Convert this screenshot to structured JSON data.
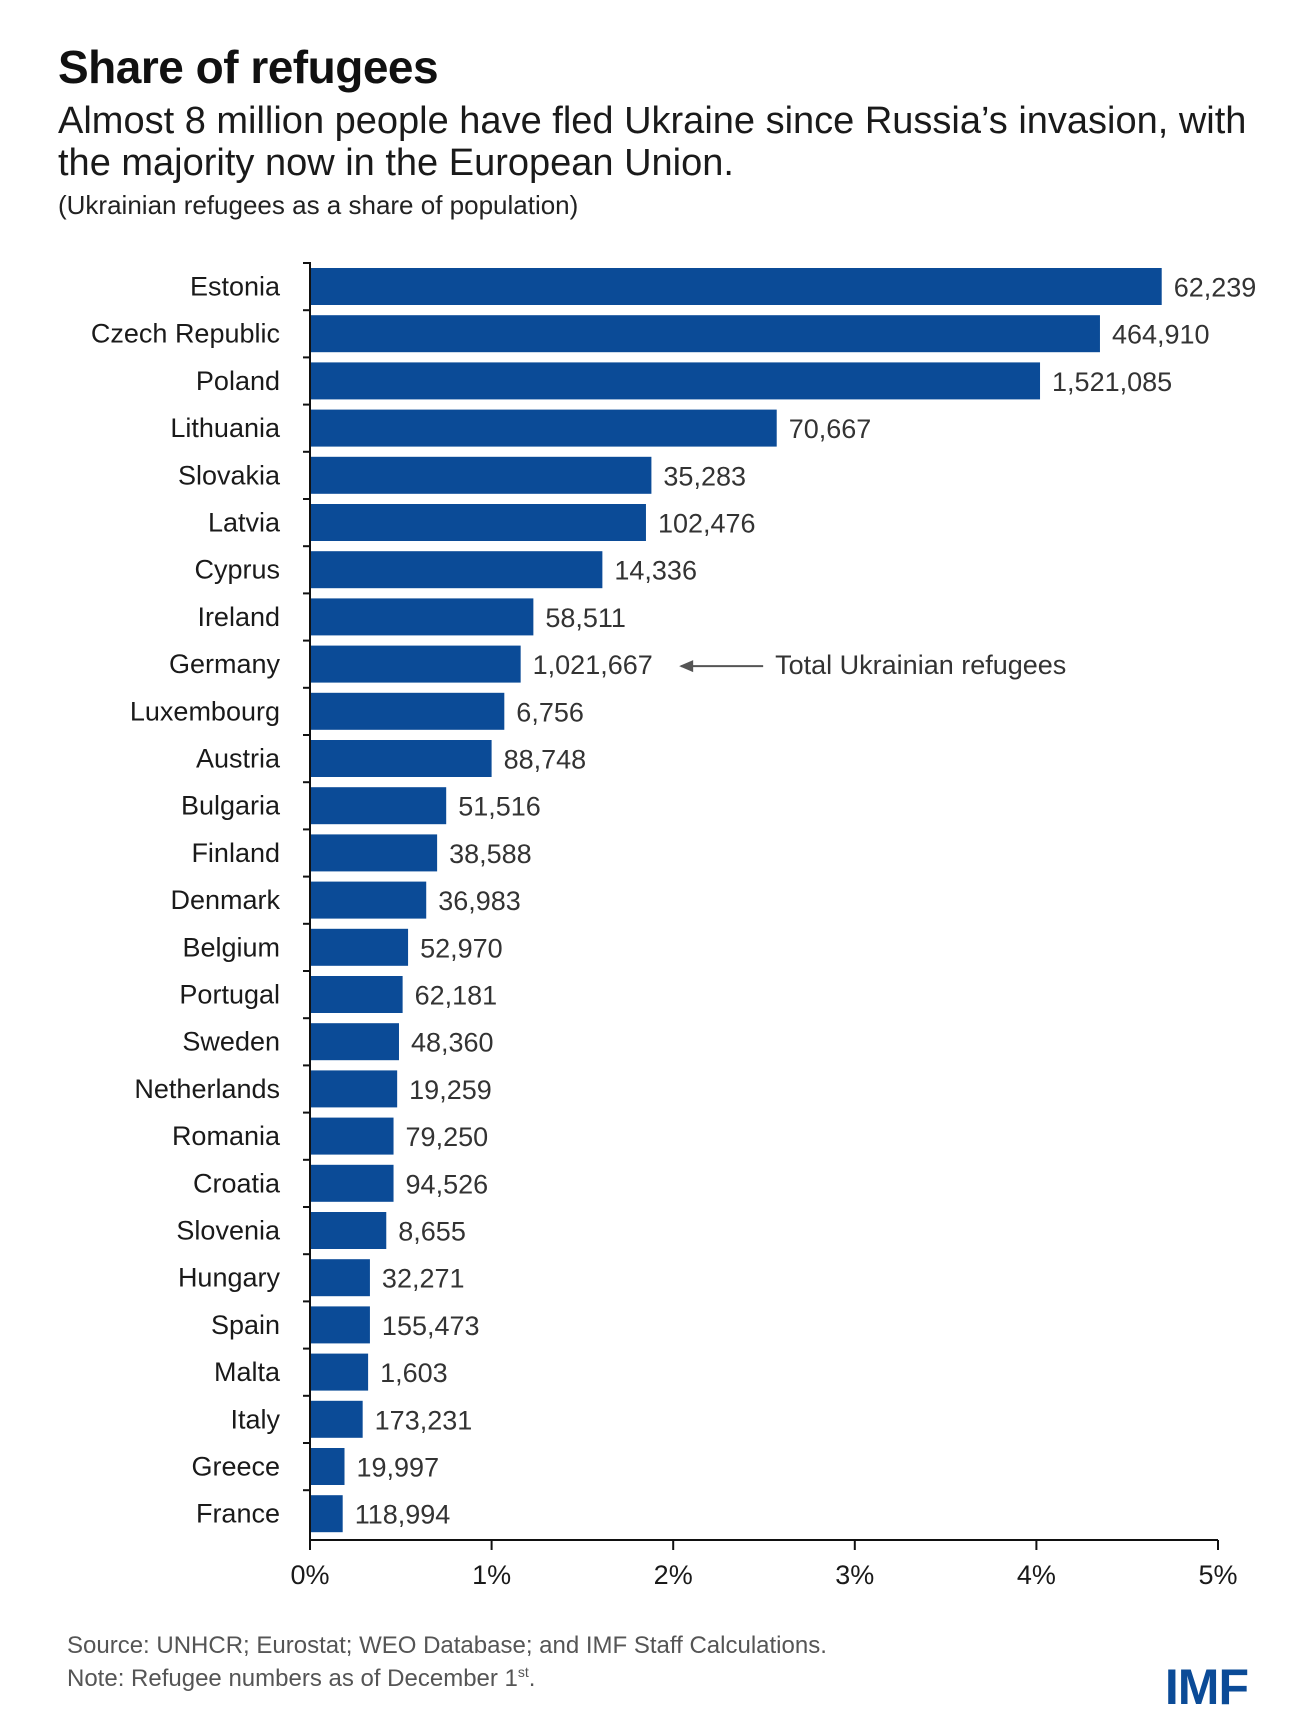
{
  "header": {
    "title": "Share of refugees",
    "subtitle": "Almost 8 million people have fled Ukraine since Russia’s invasion, with the majority now in the European Union.",
    "unit_note": "(Ukrainian refugees as a share of population)"
  },
  "footer": {
    "source": "Source: UNHCR; Eurostat; WEO Database; and IMF Staff Calculations.",
    "note_prefix": "Note: Refugee numbers as of December 1",
    "note_sup": "st",
    "note_suffix": "."
  },
  "logo": "IMF",
  "colors": {
    "bar": "#0b4b97",
    "axis": "#111111",
    "label": "#333333",
    "annotation": "#555555"
  },
  "chart_data": {
    "type": "bar",
    "orientation": "horizontal",
    "title": "Share of refugees",
    "xlabel": "",
    "ylabel": "",
    "xlim": [
      0,
      5
    ],
    "xticks": [
      0,
      1,
      2,
      3,
      4,
      5
    ],
    "xtick_labels": [
      "0%",
      "1%",
      "2%",
      "3%",
      "4%",
      "5%"
    ],
    "grid": false,
    "categories": [
      "Estonia",
      "Czech Republic",
      "Poland",
      "Lithuania",
      "Slovakia",
      "Latvia",
      "Cyprus",
      "Ireland",
      "Germany",
      "Luxembourg",
      "Austria",
      "Bulgaria",
      "Finland",
      "Denmark",
      "Belgium",
      "Portugal",
      "Sweden",
      "Netherlands",
      "Romania",
      "Croatia",
      "Slovenia",
      "Hungary",
      "Spain",
      "Malta",
      "Italy",
      "Greece",
      "France"
    ],
    "values": [
      4.69,
      4.35,
      4.02,
      2.57,
      1.88,
      1.85,
      1.61,
      1.23,
      1.16,
      1.07,
      1.0,
      0.75,
      0.7,
      0.64,
      0.54,
      0.51,
      0.49,
      0.48,
      0.46,
      0.46,
      0.42,
      0.33,
      0.33,
      0.32,
      0.29,
      0.19,
      0.18
    ],
    "data_labels": [
      "62,239",
      "464,910",
      "1,521,085",
      "70,667",
      "35,283",
      "102,476",
      "14,336",
      "58,511",
      "1,021,667",
      "6,756",
      "88,748",
      "51,516",
      "38,588",
      "36,983",
      "52,970",
      "62,181",
      "48,360",
      "19,259",
      "79,250",
      "94,526",
      "8,655",
      "32,271",
      "155,473",
      "1,603",
      "173,231",
      "19,997",
      "118,994"
    ],
    "annotation": {
      "category": "Germany",
      "text": "Total Ukrainian refugees"
    }
  }
}
